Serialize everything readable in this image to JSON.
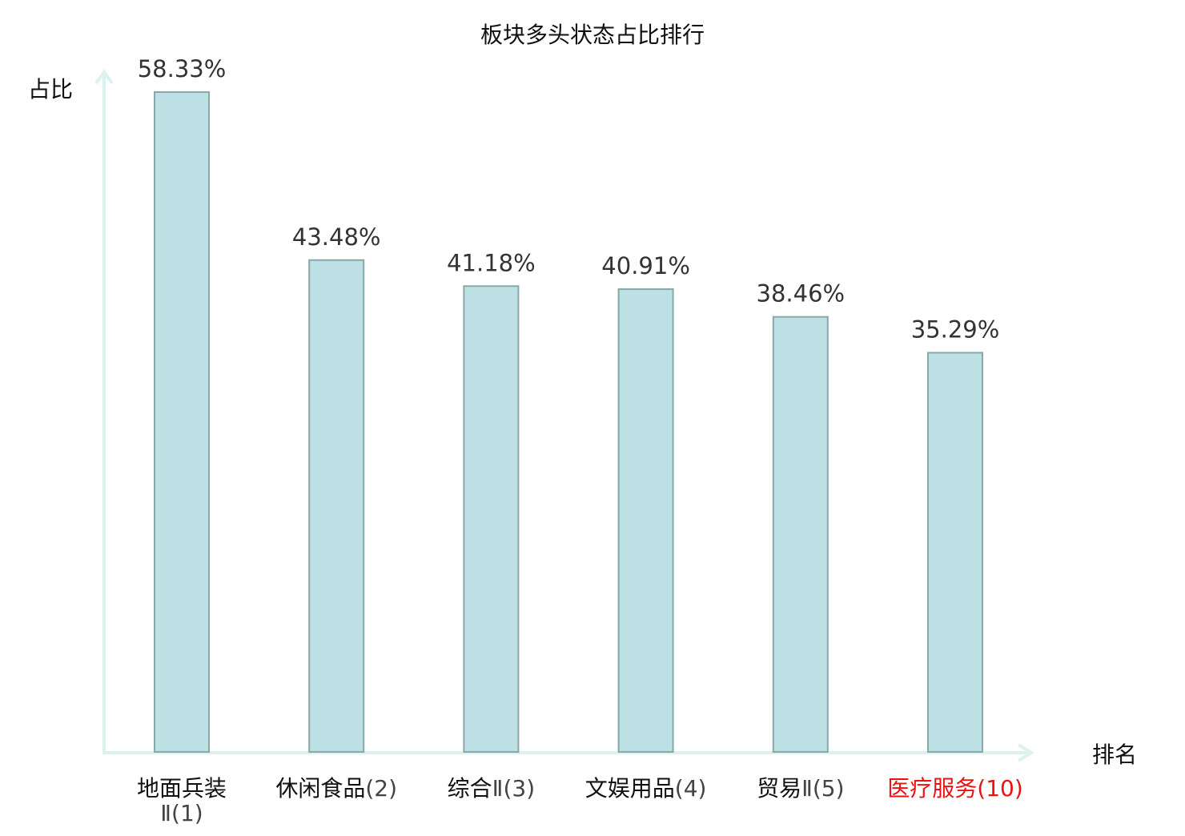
{
  "chart_data": {
    "type": "bar",
    "title": "板块多头状态占比排行",
    "xlabel": "排名",
    "ylabel": "占比",
    "categories": [
      {
        "name": "地面兵装",
        "rank": "Ⅱ(1)",
        "highlight": false
      },
      {
        "name": "休闲食品",
        "rank": "(2)",
        "highlight": false
      },
      {
        "name": "综合",
        "rank": "Ⅱ(3)",
        "highlight": false
      },
      {
        "name": "文娱用品",
        "rank": "(4)",
        "highlight": false
      },
      {
        "name": "贸易",
        "rank": "Ⅱ(5)",
        "highlight": false
      },
      {
        "name": "医疗服务",
        "rank": "(10)",
        "highlight": true
      }
    ],
    "values": [
      58.33,
      43.48,
      41.18,
      40.91,
      38.46,
      35.29
    ],
    "labels": [
      "58.33%",
      "43.48%",
      "41.18%",
      "40.91%",
      "38.46%",
      "35.29%"
    ],
    "ylim": [
      0,
      60.1
    ],
    "grid": false,
    "colors": {
      "bar": "#bce0e3",
      "bar_edge": "#88a8aa",
      "axis": "#ddf1ef",
      "label": "#333333",
      "highlight": "#ee1111",
      "text": "#111111"
    }
  }
}
